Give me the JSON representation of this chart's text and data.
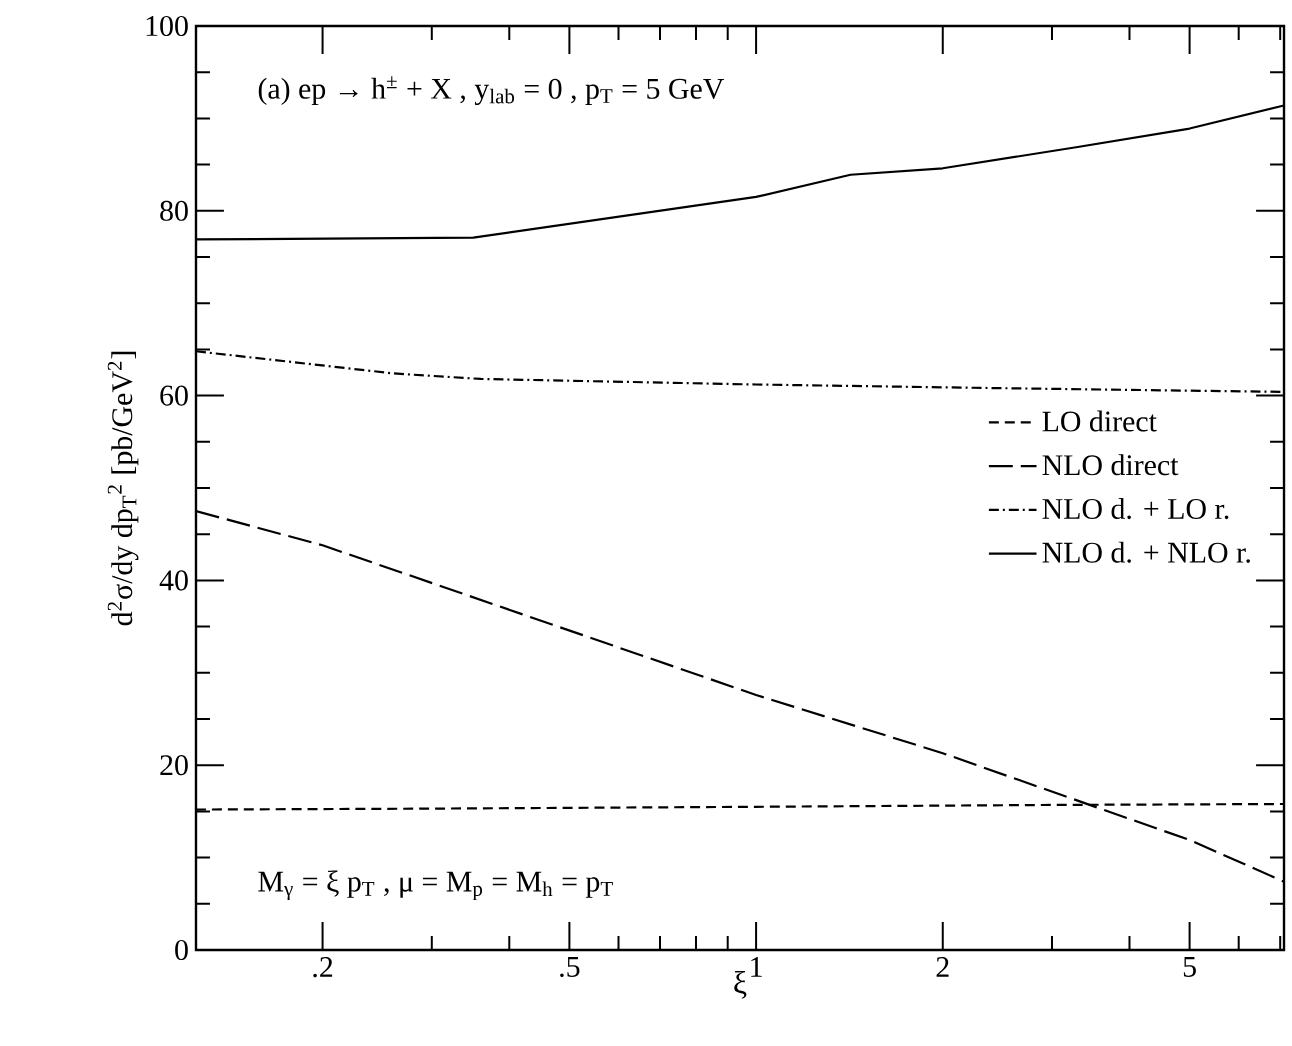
{
  "chart_data": {
    "type": "line",
    "xlabel": "ξ",
    "ylabel": "d$^{2}$σ/dy dp$_{T}$$^{2}$ [pb/GeV$^{2}$]",
    "annotations": [
      "(a)   ep → h$^{±}$ + X ,   y$_{lab}$ = 0 ,   p$_{T}$ = 5 GeV",
      "M$_{γ}$ = ξ p$_{T}$ ,   μ = M$_{p}$ = M$_{h}$ = p$_{T}$"
    ],
    "log": "x",
    "xlim": [
      0.125,
      7.1
    ],
    "ylim": [
      0,
      100
    ],
    "xticks": [
      {
        "value": 0.2,
        "label": ".2"
      },
      {
        "value": 0.3,
        "label": null
      },
      {
        "value": 0.4,
        "label": null
      },
      {
        "value": 0.5,
        "label": ".5"
      },
      {
        "value": 0.6,
        "label": null
      },
      {
        "value": 0.7,
        "label": null
      },
      {
        "value": 0.8,
        "label": null
      },
      {
        "value": 0.9,
        "label": null
      },
      1,
      2,
      {
        "value": 3,
        "label": null
      },
      {
        "value": 4,
        "label": null
      },
      5,
      {
        "value": 6,
        "label": null
      },
      {
        "value": 7,
        "label": null
      }
    ],
    "yticks": [
      0,
      {
        "value": 5,
        "label": null
      },
      {
        "value": 10,
        "label": null
      },
      {
        "value": 15,
        "label": null
      },
      20,
      {
        "value": 25,
        "label": null
      },
      {
        "value": 30,
        "label": null
      },
      {
        "value": 35,
        "label": null
      },
      40,
      {
        "value": 45,
        "label": null
      },
      {
        "value": 50,
        "label": null
      },
      {
        "value": 55,
        "label": null
      },
      60,
      {
        "value": 65,
        "label": null
      },
      {
        "value": 70,
        "label": null
      },
      {
        "value": 75,
        "label": null
      },
      80,
      {
        "value": 85,
        "label": null
      },
      {
        "value": 90,
        "label": null
      },
      {
        "value": 95,
        "label": null
      },
      100
    ],
    "legend": "right",
    "grid": false,
    "series": [
      {
        "name": "LO   direct",
        "color": "#000000",
        "line_style": "dashed",
        "x": [
          0.125,
          0.3,
          1,
          3,
          7.1
        ],
        "values": [
          15.2,
          15.3,
          15.5,
          15.7,
          15.8
        ]
      },
      {
        "name": "NLO  direct",
        "color": "#000000",
        "line_style": "longdashed",
        "x": [
          0.125,
          0.2,
          1,
          2,
          5,
          7.1
        ],
        "values": [
          47.5,
          43.8,
          27.6,
          21.3,
          11.9,
          7.4
        ]
      },
      {
        "name": "NLO  d. + LO   r.",
        "color": "#000000",
        "line_style": "dashdotted",
        "x": [
          0.125,
          0.26,
          0.36,
          1,
          2.5,
          7.1
        ],
        "values": [
          64.8,
          62.4,
          61.8,
          61.2,
          60.8,
          60.4
        ]
      },
      {
        "name": "NLO  d. + NLO  r.",
        "color": "#000000",
        "line_style": "solid",
        "x": [
          0.125,
          0.35,
          1,
          1.42,
          2,
          3.3,
          5,
          7.1
        ],
        "values": [
          76.9,
          77.1,
          81.5,
          83.9,
          84.6,
          86.9,
          88.9,
          91.4
        ]
      }
    ]
  }
}
